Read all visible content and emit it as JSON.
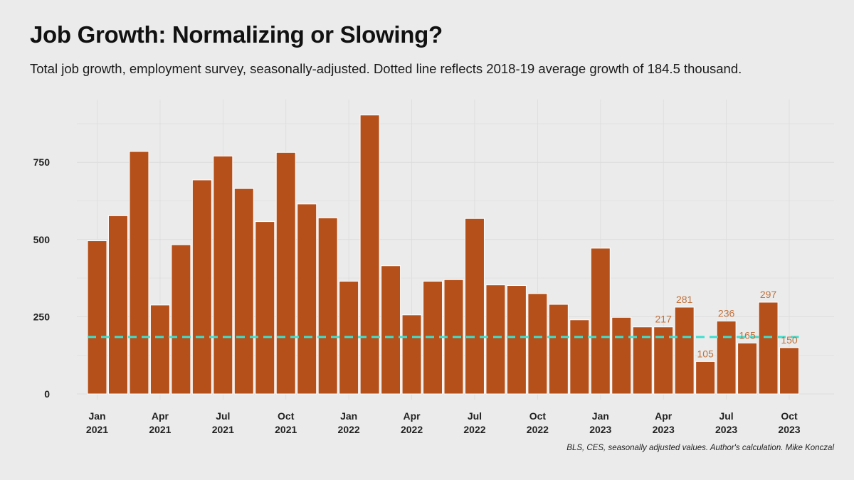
{
  "header": {
    "title": "Job Growth: Normalizing or Slowing?",
    "subtitle": "Total job growth, employment survey, seasonally-adjusted. Dotted line reflects 2018-19 average growth of 184.5 thousand."
  },
  "footer": {
    "caption": "BLS, CES, seasonally adjusted values. Author's calculation. Mike Konczal"
  },
  "colors": {
    "background": "#ebebeb",
    "grid": "#dcdcdc",
    "bar": "#b5501a",
    "bar_outline": "#ffffff",
    "reference_line": "#3ee0d0",
    "data_label": "#c0703a"
  },
  "chart_data": {
    "type": "bar",
    "title": "Job Growth: Normalizing or Slowing?",
    "subtitle": "Total job growth, employment survey, seasonally-adjusted. Dotted line reflects 2018-19 average growth of 184.5 thousand.",
    "xlabel": "",
    "ylabel": "",
    "ylim": [
      0,
      930
    ],
    "yticks": [
      0,
      250,
      500,
      750
    ],
    "grid": true,
    "x": [
      "2021-01",
      "2021-02",
      "2021-03",
      "2021-04",
      "2021-05",
      "2021-06",
      "2021-07",
      "2021-08",
      "2021-09",
      "2021-10",
      "2021-11",
      "2021-12",
      "2022-01",
      "2022-02",
      "2022-03",
      "2022-04",
      "2022-05",
      "2022-06",
      "2022-07",
      "2022-08",
      "2022-09",
      "2022-10",
      "2022-11",
      "2022-12",
      "2023-01",
      "2023-02",
      "2023-03",
      "2023-04",
      "2023-05",
      "2023-06",
      "2023-07",
      "2023-08",
      "2023-09",
      "2023-10"
    ],
    "values": [
      496,
      577,
      785,
      288,
      483,
      693,
      770,
      665,
      558,
      782,
      615,
      570,
      365,
      903,
      415,
      256,
      365,
      370,
      568,
      353,
      351,
      325,
      290,
      240,
      472,
      248,
      217,
      217,
      281,
      105,
      236,
      165,
      297,
      150
    ],
    "x_tick_labels": [
      {
        "index": 0,
        "month": "Jan",
        "year": "2021"
      },
      {
        "index": 3,
        "month": "Apr",
        "year": "2021"
      },
      {
        "index": 6,
        "month": "Jul",
        "year": "2021"
      },
      {
        "index": 9,
        "month": "Oct",
        "year": "2021"
      },
      {
        "index": 12,
        "month": "Jan",
        "year": "2022"
      },
      {
        "index": 15,
        "month": "Apr",
        "year": "2022"
      },
      {
        "index": 18,
        "month": "Jul",
        "year": "2022"
      },
      {
        "index": 21,
        "month": "Oct",
        "year": "2022"
      },
      {
        "index": 24,
        "month": "Jan",
        "year": "2023"
      },
      {
        "index": 27,
        "month": "Apr",
        "year": "2023"
      },
      {
        "index": 30,
        "month": "Jul",
        "year": "2023"
      },
      {
        "index": 33,
        "month": "Oct",
        "year": "2023"
      }
    ],
    "data_labels": [
      {
        "index": 27,
        "text": "217"
      },
      {
        "index": 28,
        "text": "281"
      },
      {
        "index": 29,
        "text": "105"
      },
      {
        "index": 30,
        "text": "236"
      },
      {
        "index": 31,
        "text": "165"
      },
      {
        "index": 32,
        "text": "297"
      },
      {
        "index": 33,
        "text": "150"
      }
    ],
    "reference_line": {
      "value": 184.5,
      "style": "dashed"
    }
  }
}
